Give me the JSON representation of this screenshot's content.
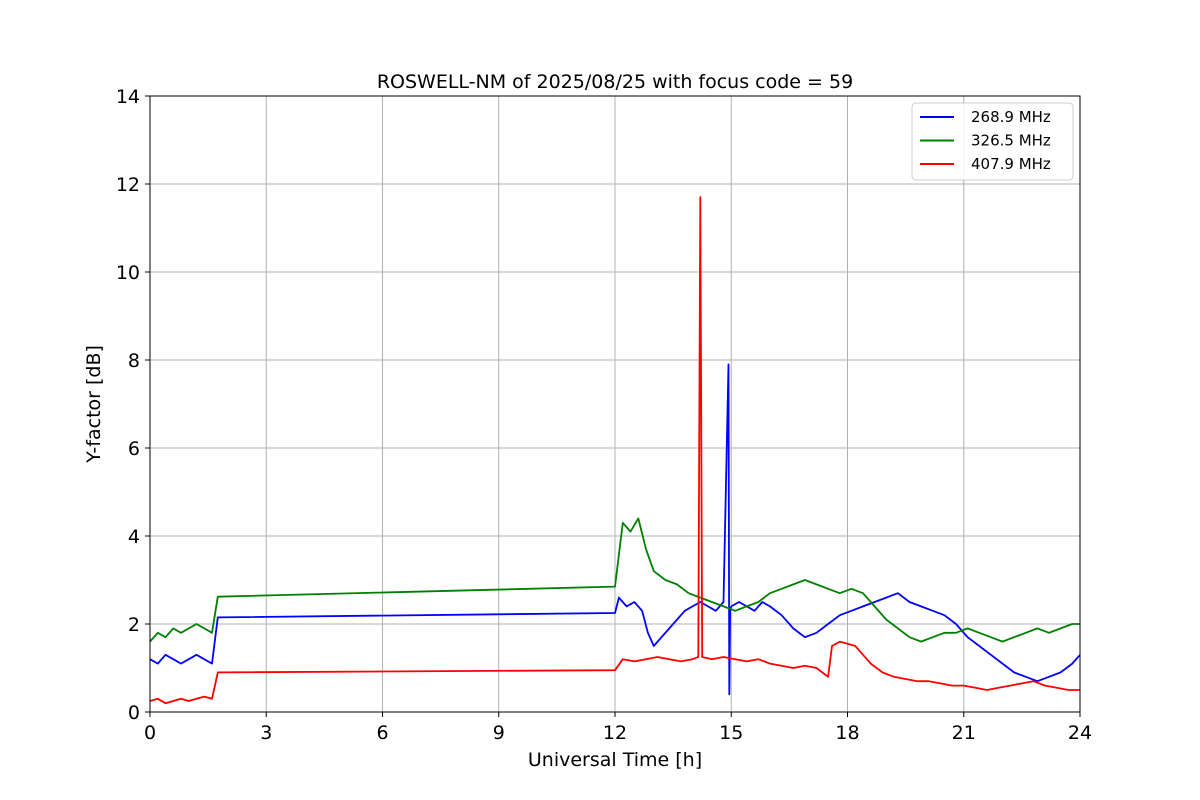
{
  "chart_data": {
    "type": "line",
    "title": "ROSWELL-NM of 2025/08/25 with focus code = 59",
    "xlabel": "Universal Time [h]",
    "ylabel": "Y-factor [dB]",
    "xlim": [
      0,
      24
    ],
    "ylim": [
      0,
      14
    ],
    "xticks": [
      "0",
      "3",
      "6",
      "9",
      "12",
      "15",
      "18",
      "21",
      "24"
    ],
    "yticks": [
      "0",
      "2",
      "4",
      "6",
      "8",
      "10",
      "12",
      "14"
    ],
    "grid": true,
    "legend_position": "top-right",
    "series": [
      {
        "name": "268.9 MHz",
        "color": "#0000ff",
        "x": [
          0.0,
          0.2,
          0.4,
          0.6,
          0.8,
          1.0,
          1.2,
          1.4,
          1.6,
          1.75,
          12.0,
          12.1,
          12.3,
          12.5,
          12.7,
          12.85,
          13.0,
          13.2,
          13.4,
          13.6,
          13.8,
          14.0,
          14.2,
          14.4,
          14.6,
          14.8,
          14.93,
          14.95,
          14.97,
          15.0,
          15.2,
          15.4,
          15.6,
          15.8,
          16.0,
          16.3,
          16.6,
          16.9,
          17.2,
          17.5,
          17.8,
          18.1,
          18.4,
          18.7,
          19.0,
          19.3,
          19.6,
          19.9,
          20.2,
          20.5,
          20.8,
          21.1,
          21.4,
          21.7,
          22.0,
          22.3,
          22.6,
          22.9,
          23.2,
          23.5,
          23.8,
          24.0
        ],
        "y": [
          1.2,
          1.1,
          1.3,
          1.2,
          1.1,
          1.2,
          1.3,
          1.2,
          1.1,
          2.15,
          2.25,
          2.6,
          2.4,
          2.5,
          2.3,
          1.8,
          1.5,
          1.7,
          1.9,
          2.1,
          2.3,
          2.4,
          2.5,
          2.4,
          2.3,
          2.5,
          7.9,
          0.4,
          2.3,
          2.4,
          2.5,
          2.4,
          2.3,
          2.5,
          2.4,
          2.2,
          1.9,
          1.7,
          1.8,
          2.0,
          2.2,
          2.3,
          2.4,
          2.5,
          2.6,
          2.7,
          2.5,
          2.4,
          2.3,
          2.2,
          2.0,
          1.7,
          1.5,
          1.3,
          1.1,
          0.9,
          0.8,
          0.7,
          0.8,
          0.9,
          1.1,
          1.3
        ]
      },
      {
        "name": "326.5 MHz",
        "color": "#008000",
        "x": [
          0.0,
          0.2,
          0.4,
          0.6,
          0.8,
          1.0,
          1.2,
          1.4,
          1.6,
          1.75,
          12.0,
          12.2,
          12.4,
          12.6,
          12.8,
          13.0,
          13.3,
          13.6,
          13.9,
          14.2,
          14.5,
          14.8,
          15.1,
          15.4,
          15.7,
          16.0,
          16.3,
          16.6,
          16.9,
          17.2,
          17.5,
          17.8,
          18.1,
          18.4,
          18.7,
          19.0,
          19.3,
          19.6,
          19.9,
          20.2,
          20.5,
          20.8,
          21.1,
          21.4,
          21.7,
          22.0,
          22.3,
          22.6,
          22.9,
          23.2,
          23.5,
          23.8,
          24.0
        ],
        "y": [
          1.6,
          1.8,
          1.7,
          1.9,
          1.8,
          1.9,
          2.0,
          1.9,
          1.8,
          2.62,
          2.85,
          4.3,
          4.1,
          4.4,
          3.7,
          3.2,
          3.0,
          2.9,
          2.7,
          2.6,
          2.5,
          2.4,
          2.3,
          2.4,
          2.5,
          2.7,
          2.8,
          2.9,
          3.0,
          2.9,
          2.8,
          2.7,
          2.8,
          2.7,
          2.4,
          2.1,
          1.9,
          1.7,
          1.6,
          1.7,
          1.8,
          1.8,
          1.9,
          1.8,
          1.7,
          1.6,
          1.7,
          1.8,
          1.9,
          1.8,
          1.9,
          2.0,
          2.0
        ]
      },
      {
        "name": "407.9 MHz",
        "color": "#ff0000",
        "x": [
          0.0,
          0.2,
          0.4,
          0.6,
          0.8,
          1.0,
          1.2,
          1.4,
          1.6,
          1.75,
          12.0,
          12.2,
          12.5,
          12.8,
          13.1,
          13.4,
          13.7,
          14.0,
          14.15,
          14.2,
          14.25,
          14.5,
          14.8,
          15.1,
          15.4,
          15.7,
          16.0,
          16.3,
          16.6,
          16.9,
          17.2,
          17.5,
          17.6,
          17.8,
          18.0,
          18.2,
          18.4,
          18.6,
          18.9,
          19.2,
          19.5,
          19.8,
          20.1,
          20.4,
          20.7,
          21.0,
          21.3,
          21.6,
          21.9,
          22.2,
          22.5,
          22.8,
          23.1,
          23.4,
          23.7,
          24.0
        ],
        "y": [
          0.25,
          0.3,
          0.2,
          0.25,
          0.3,
          0.25,
          0.3,
          0.35,
          0.3,
          0.9,
          0.95,
          1.2,
          1.15,
          1.2,
          1.25,
          1.2,
          1.15,
          1.2,
          1.25,
          11.7,
          1.25,
          1.2,
          1.25,
          1.2,
          1.15,
          1.2,
          1.1,
          1.05,
          1.0,
          1.05,
          1.0,
          0.8,
          1.5,
          1.6,
          1.55,
          1.5,
          1.3,
          1.1,
          0.9,
          0.8,
          0.75,
          0.7,
          0.7,
          0.65,
          0.6,
          0.6,
          0.55,
          0.5,
          0.55,
          0.6,
          0.65,
          0.7,
          0.6,
          0.55,
          0.5,
          0.5
        ]
      }
    ]
  }
}
